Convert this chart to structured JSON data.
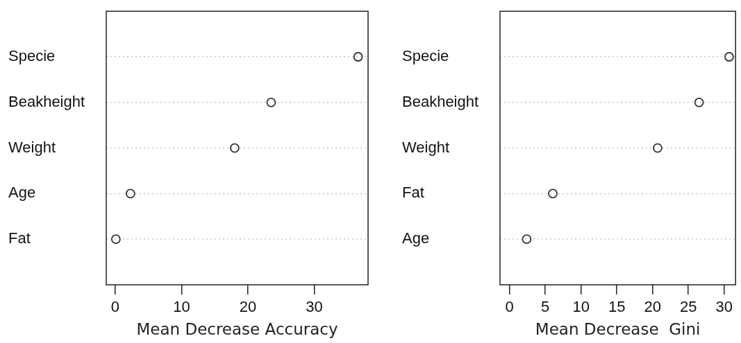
{
  "chart_data": [
    {
      "type": "scatter",
      "orientation": "horizontal",
      "categories": [
        "Specie",
        "Beakheight",
        "Weight",
        "Age",
        "Fat"
      ],
      "values": [
        36.6,
        23.5,
        18.0,
        2.3,
        0.1
      ],
      "color": "#333333",
      "marker": "circle",
      "grid": "y",
      "xlim": [
        -1.35,
        38.1
      ],
      "xticks": [
        0,
        10,
        20,
        30
      ],
      "xlabel": "Mean Decrease Accuracy"
    },
    {
      "type": "scatter",
      "orientation": "horizontal",
      "categories": [
        "Specie",
        "Beakheight",
        "Weight",
        "Fat",
        "Age"
      ],
      "values": [
        30.7,
        26.5,
        20.7,
        6.05,
        2.4
      ],
      "color": "#333333",
      "marker": "circle",
      "grid": "y",
      "xlim": [
        -1.33,
        31.6
      ],
      "xticks": [
        0,
        5,
        10,
        15,
        20,
        25,
        30
      ],
      "xlabel": "Mean Decrease  Gini"
    }
  ]
}
